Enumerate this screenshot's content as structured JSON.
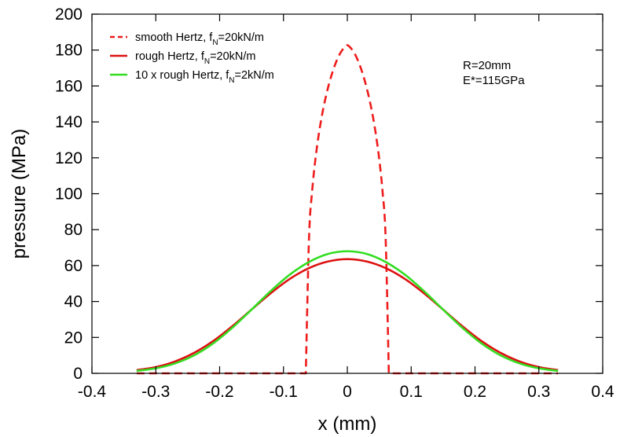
{
  "chart_data": {
    "type": "line",
    "xlabel": "x  (mm)",
    "ylabel": "pressure (MPa)",
    "xlim": [
      -0.4,
      0.4
    ],
    "ylim": [
      0,
      200
    ],
    "xticks": [
      -0.4,
      -0.3,
      -0.2,
      -0.1,
      0,
      0.1,
      0.2,
      0.3,
      0.4
    ],
    "xtick_labels": [
      "-0.4",
      "-0.3",
      "-0.2",
      "-0.1",
      "0",
      "0.1",
      "0.2",
      "0.3",
      "0.4"
    ],
    "yticks": [
      0,
      20,
      40,
      60,
      80,
      100,
      120,
      140,
      160,
      180,
      200
    ],
    "ytick_labels": [
      "0",
      "20",
      "40",
      "60",
      "80",
      "100",
      "120",
      "140",
      "160",
      "180",
      "200"
    ],
    "legend_position": "top-left",
    "annotations": [
      "R=20mm",
      "E*=115GPa"
    ],
    "series": [
      {
        "name": "smooth Hertz, f_N=20kN/m",
        "legend_main": "smooth Hertz, f",
        "legend_sub": "N",
        "legend_tail": "=20kN/m",
        "color": "#ee1c1c",
        "style": "dashed",
        "x": [
          -0.33,
          -0.065,
          -0.06,
          -0.055,
          -0.05,
          -0.045,
          -0.04,
          -0.035,
          -0.03,
          -0.025,
          -0.02,
          -0.015,
          -0.01,
          -0.005,
          0,
          0.005,
          0.01,
          0.015,
          0.02,
          0.025,
          0.03,
          0.035,
          0.04,
          0.045,
          0.05,
          0.055,
          0.06,
          0.065,
          0.33
        ],
        "y": [
          0,
          0,
          75.4,
          101.9,
          119.2,
          132.4,
          143.1,
          151.9,
          159.4,
          165.7,
          171.1,
          175.5,
          178.9,
          181.3,
          182.7,
          181.3,
          178.9,
          175.5,
          171.1,
          165.7,
          159.4,
          151.9,
          143.1,
          132.4,
          119.2,
          101.9,
          75.4,
          0,
          0
        ]
      },
      {
        "name": "rough Hertz, f_N=20kN/m",
        "legend_main": "rough Hertz, f",
        "legend_sub": "N",
        "legend_tail": "=20kN/m",
        "color": "#dd1111",
        "style": "solid",
        "x": [
          -0.33,
          -0.3,
          -0.27,
          -0.24,
          -0.21,
          -0.18,
          -0.15,
          -0.12,
          -0.09,
          -0.06,
          -0.03,
          0,
          0.03,
          0.06,
          0.09,
          0.12,
          0.15,
          0.18,
          0.21,
          0.24,
          0.27,
          0.3,
          0.33
        ],
        "y": [
          1.8,
          3.5,
          6.6,
          11.4,
          18.0,
          26.3,
          35.5,
          44.6,
          52.6,
          58.6,
          62.3,
          63.6,
          62.3,
          58.6,
          52.6,
          44.6,
          35.5,
          26.3,
          18.0,
          11.4,
          6.6,
          3.5,
          1.8
        ]
      },
      {
        "name": "10 x rough Hertz, f_N=2kN/m",
        "legend_main": "10 x rough Hertz, f",
        "legend_sub": "N",
        "legend_tail": "=2kN/m",
        "color": "#33dd22",
        "style": "solid",
        "x": [
          -0.33,
          -0.3,
          -0.27,
          -0.24,
          -0.21,
          -0.18,
          -0.15,
          -0.12,
          -0.09,
          -0.06,
          -0.03,
          0,
          0.03,
          0.06,
          0.09,
          0.12,
          0.15,
          0.18,
          0.21,
          0.24,
          0.27,
          0.3,
          0.33
        ],
        "y": [
          1.4,
          2.8,
          5.5,
          10.0,
          16.7,
          25.4,
          35.5,
          45.8,
          55.0,
          62.0,
          66.5,
          68.0,
          66.5,
          62.0,
          55.0,
          45.8,
          35.5,
          25.4,
          16.7,
          10.0,
          5.5,
          2.8,
          1.4
        ]
      }
    ]
  }
}
